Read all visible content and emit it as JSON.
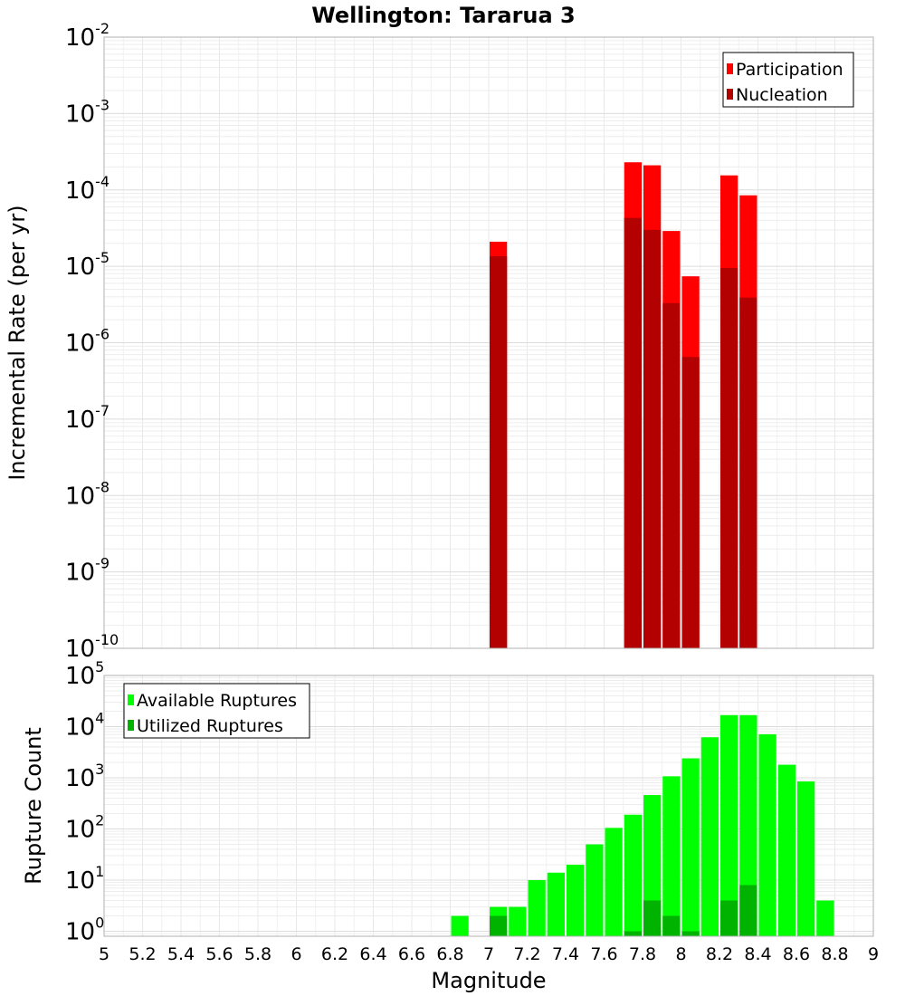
{
  "title": "Wellington: Tarарua 3",
  "chart_data": [
    {
      "type": "bar",
      "panel": "top",
      "ylabel": "Incremental Rate (per yr)",
      "yscale": "log",
      "ylim": [
        1e-10,
        0.01
      ],
      "y_ticks": [
        {
          "base": "10",
          "exp": "-2"
        },
        {
          "base": "10",
          "exp": "-3"
        },
        {
          "base": "10",
          "exp": "-4"
        },
        {
          "base": "10",
          "exp": "-5"
        },
        {
          "base": "10",
          "exp": "-6"
        },
        {
          "base": "10",
          "exp": "-7"
        },
        {
          "base": "10",
          "exp": "-8"
        },
        {
          "base": "10",
          "exp": "-9"
        },
        {
          "base": "10",
          "exp": "-10"
        }
      ],
      "xlim": [
        5,
        9
      ],
      "legend_position": "top-right",
      "bar_width": 0.1,
      "series": [
        {
          "name": "Participation",
          "color": "#ff0000",
          "points": [
            {
              "x": 7.05,
              "y": 2.1e-05
            },
            {
              "x": 7.75,
              "y": 0.00023
            },
            {
              "x": 7.85,
              "y": 0.00021
            },
            {
              "x": 7.95,
              "y": 2.9e-05
            },
            {
              "x": 8.05,
              "y": 7.4e-06
            },
            {
              "x": 8.25,
              "y": 0.000155
            },
            {
              "x": 8.35,
              "y": 8.5e-05
            }
          ]
        },
        {
          "name": "Nucleation",
          "color": "#b30000",
          "points": [
            {
              "x": 7.05,
              "y": 1.35e-05
            },
            {
              "x": 7.75,
              "y": 4.3e-05
            },
            {
              "x": 7.85,
              "y": 3e-05
            },
            {
              "x": 7.95,
              "y": 3.3e-06
            },
            {
              "x": 8.05,
              "y": 6.5e-07
            },
            {
              "x": 8.25,
              "y": 9.5e-06
            },
            {
              "x": 8.35,
              "y": 3.9e-06
            }
          ]
        }
      ]
    },
    {
      "type": "bar",
      "panel": "bottom",
      "ylabel": "Rupture Count",
      "xlabel": "Magnitude",
      "yscale": "log",
      "ylim": [
        0.8,
        100000.0
      ],
      "y_ticks": [
        {
          "value": 1,
          "base": "10",
          "exp": "0"
        },
        {
          "value": 10,
          "base": "10",
          "exp": "1"
        },
        {
          "value": 100,
          "base": "10",
          "exp": "2"
        },
        {
          "value": 1000,
          "base": "10",
          "exp": "3"
        },
        {
          "value": 10000,
          "base": "10",
          "exp": "4"
        },
        {
          "value": 100000,
          "base": "10",
          "exp": "5"
        }
      ],
      "xlim": [
        5,
        9
      ],
      "x_ticks": [
        "5",
        "5.2",
        "5.4",
        "5.6",
        "5.8",
        "6",
        "6.2",
        "6.4",
        "6.6",
        "6.8",
        "7",
        "7.2",
        "7.4",
        "7.6",
        "7.8",
        "8",
        "8.2",
        "8.4",
        "8.6",
        "8.8",
        "9"
      ],
      "legend_position": "top-left",
      "bar_width": 0.1,
      "series": [
        {
          "name": "Available Ruptures",
          "color": "#00ff00",
          "points": [
            {
              "x": 6.85,
              "y": 2
            },
            {
              "x": 7.05,
              "y": 3
            },
            {
              "x": 7.15,
              "y": 3
            },
            {
              "x": 7.25,
              "y": 10
            },
            {
              "x": 7.35,
              "y": 14
            },
            {
              "x": 7.45,
              "y": 20
            },
            {
              "x": 7.55,
              "y": 50
            },
            {
              "x": 7.65,
              "y": 105
            },
            {
              "x": 7.75,
              "y": 190
            },
            {
              "x": 7.85,
              "y": 460
            },
            {
              "x": 7.95,
              "y": 1070
            },
            {
              "x": 8.05,
              "y": 2400
            },
            {
              "x": 8.15,
              "y": 6200
            },
            {
              "x": 8.25,
              "y": 16800
            },
            {
              "x": 8.35,
              "y": 16800
            },
            {
              "x": 8.45,
              "y": 7100
            },
            {
              "x": 8.55,
              "y": 1800
            },
            {
              "x": 8.65,
              "y": 850
            },
            {
              "x": 8.75,
              "y": 4
            }
          ]
        },
        {
          "name": "Utilized Ruptures",
          "color": "#00b300",
          "points": [
            {
              "x": 7.05,
              "y": 2
            },
            {
              "x": 7.75,
              "y": 1
            },
            {
              "x": 7.85,
              "y": 4
            },
            {
              "x": 7.95,
              "y": 2
            },
            {
              "x": 8.05,
              "y": 1
            },
            {
              "x": 8.25,
              "y": 4
            },
            {
              "x": 8.35,
              "y": 8
            }
          ]
        }
      ]
    }
  ]
}
